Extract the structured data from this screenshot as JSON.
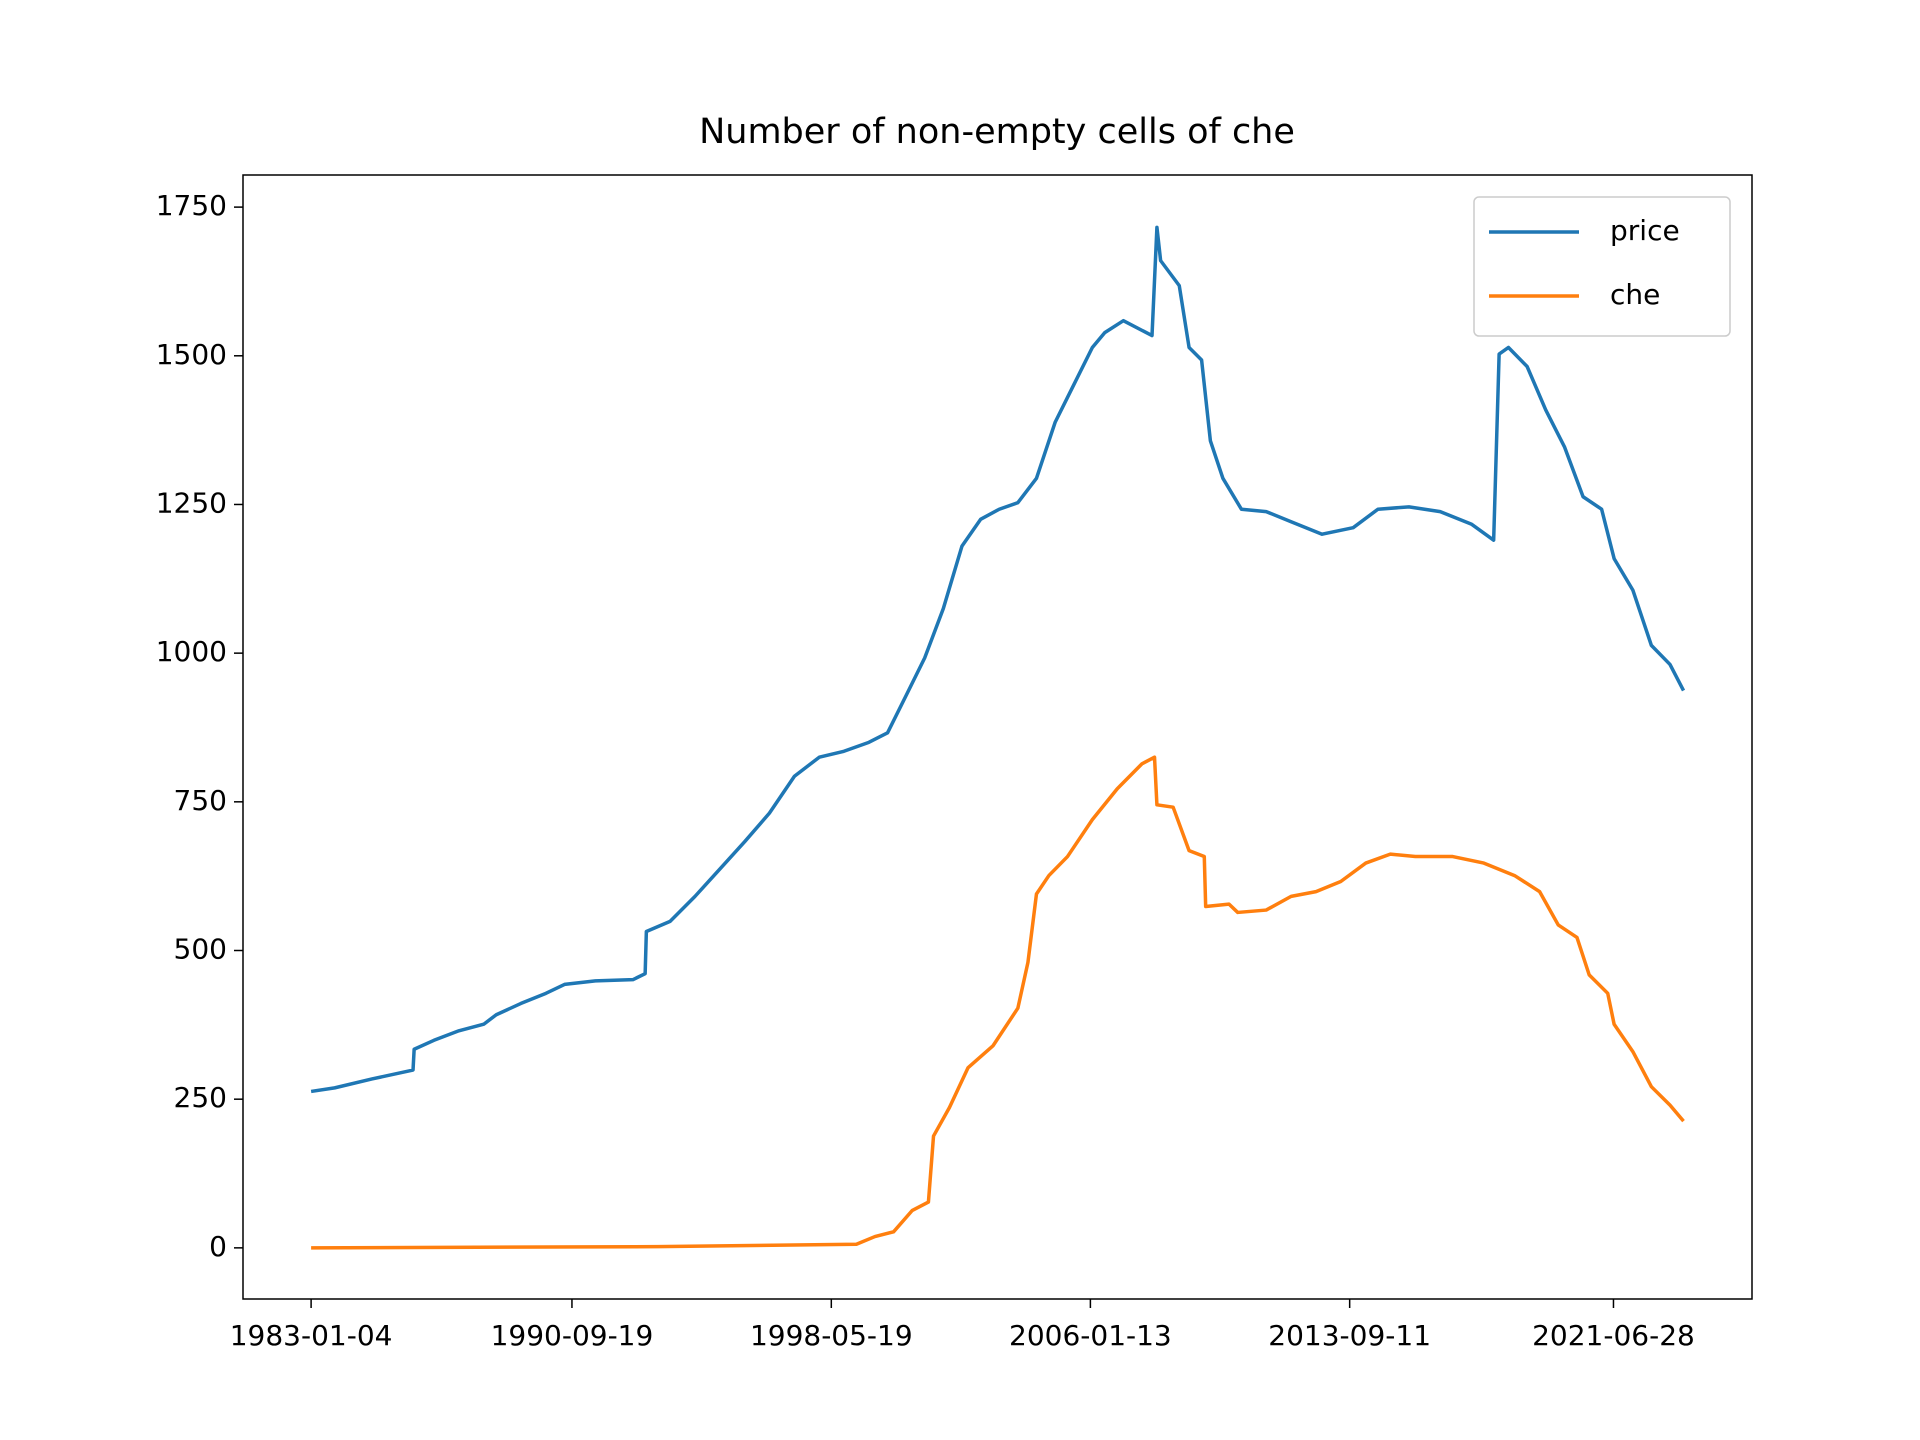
{
  "chart_data": {
    "type": "line",
    "title": "Number of non-empty cells of che",
    "xlim": [
      "1980-12-30",
      "2025-08-01"
    ],
    "xticks": [
      "1983-01-04",
      "1990-09-19",
      "1998-05-19",
      "2006-01-13",
      "2013-09-11",
      "2021-06-28"
    ],
    "ylim": [
      -86,
      1804
    ],
    "yticks": [
      0,
      250,
      500,
      750,
      1000,
      1250,
      1500,
      1750
    ],
    "grid": false,
    "legend": "upper-right",
    "series": [
      {
        "name": "price",
        "color": "#1f77b4",
        "x": [
          "1983-01-04",
          "1983-09-15",
          "1984-10-22",
          "1986-01-08",
          "1986-01-20",
          "1986-08-22",
          "1987-05-18",
          "1988-02-10",
          "1988-06-24",
          "1989-03-18",
          "1989-12-12",
          "1990-07-01",
          "1991-05-30",
          "1992-07-08",
          "1992-11-17",
          "1992-11-30",
          "1993-08-13",
          "1994-05-09",
          "1995-02-01",
          "1995-10-27",
          "1996-07-20",
          "1997-04-16",
          "1998-01-09",
          "1998-10-02",
          "1999-06-28",
          "2000-01-16",
          "2000-08-04",
          "2001-02-20",
          "2001-09-09",
          "2002-03-29",
          "2002-10-16",
          "2003-05-05",
          "2003-11-22",
          "2004-06-10",
          "2004-12-28",
          "2005-07-17",
          "2006-02-03",
          "2006-06-17",
          "2007-01-04",
          "2007-11-09",
          "2008-01-01",
          "2008-02-10",
          "2008-08-29",
          "2008-12-13",
          "2009-04-27",
          "2009-07-31",
          "2009-12-13",
          "2010-07-01",
          "2011-03-25",
          "2011-12-19",
          "2012-11-17",
          "2013-10-19",
          "2014-07-13",
          "2015-06-13",
          "2016-05-15",
          "2017-04-16",
          "2017-12-13",
          "2018-02-10",
          "2018-05-22",
          "2018-12-09",
          "2019-06-28",
          "2020-01-16",
          "2020-08-04",
          "2021-02-20",
          "2021-07-05",
          "2022-01-23",
          "2022-08-11",
          "2023-02-28",
          "2023-07-24"
        ],
        "values": [
          263,
          269,
          284,
          299,
          334,
          349,
          365,
          376,
          392,
          411,
          428,
          443,
          449,
          451,
          461,
          532,
          549,
          591,
          637,
          683,
          731,
          793,
          825,
          835,
          850,
          866,
          929,
          992,
          1075,
          1180,
          1225,
          1242,
          1253,
          1294,
          1388,
          1451,
          1514,
          1539,
          1559,
          1534,
          1716,
          1660,
          1618,
          1514,
          1493,
          1357,
          1294,
          1242,
          1238,
          1221,
          1200,
          1211,
          1242,
          1246,
          1238,
          1217,
          1190,
          1503,
          1514,
          1482,
          1409,
          1347,
          1263,
          1242,
          1159,
          1106,
          1013,
          981,
          937
        ]
      },
      {
        "name": "che",
        "color": "#ff7f0e",
        "x": [
          "1983-01-04",
          "1993-04-01",
          "1999-02-14",
          "1999-09-02",
          "2000-03-21",
          "2000-10-09",
          "2001-04-01",
          "2001-05-26",
          "2001-11-14",
          "2002-06-03",
          "2003-02-28",
          "2003-11-22",
          "2004-03-10",
          "2004-06-10",
          "2004-10-22",
          "2005-05-11",
          "2006-02-03",
          "2006-10-30",
          "2007-07-24",
          "2007-12-06",
          "2008-01-01",
          "2008-06-24",
          "2008-12-13",
          "2009-05-26",
          "2009-06-10",
          "2010-02-17",
          "2010-05-22",
          "2011-03-25",
          "2011-12-19",
          "2012-09-13",
          "2013-06-07",
          "2014-03-04",
          "2014-11-24",
          "2015-08-21",
          "2016-09-27",
          "2017-08-29",
          "2018-07-27",
          "2019-04-23",
          "2019-11-10",
          "2020-05-30",
          "2020-10-09",
          "2021-04-27",
          "2021-07-05",
          "2022-01-23",
          "2022-08-11",
          "2023-02-28",
          "2023-07-24"
        ],
        "values": [
          0,
          2,
          6,
          19,
          27,
          63,
          77,
          188,
          236,
          303,
          340,
          403,
          480,
          595,
          626,
          658,
          720,
          772,
          814,
          825,
          745,
          741,
          668,
          658,
          574,
          578,
          564,
          568,
          591,
          599,
          616,
          647,
          662,
          658,
          658,
          647,
          626,
          599,
          543,
          522,
          459,
          428,
          376,
          330,
          271,
          240,
          213
        ]
      }
    ]
  }
}
